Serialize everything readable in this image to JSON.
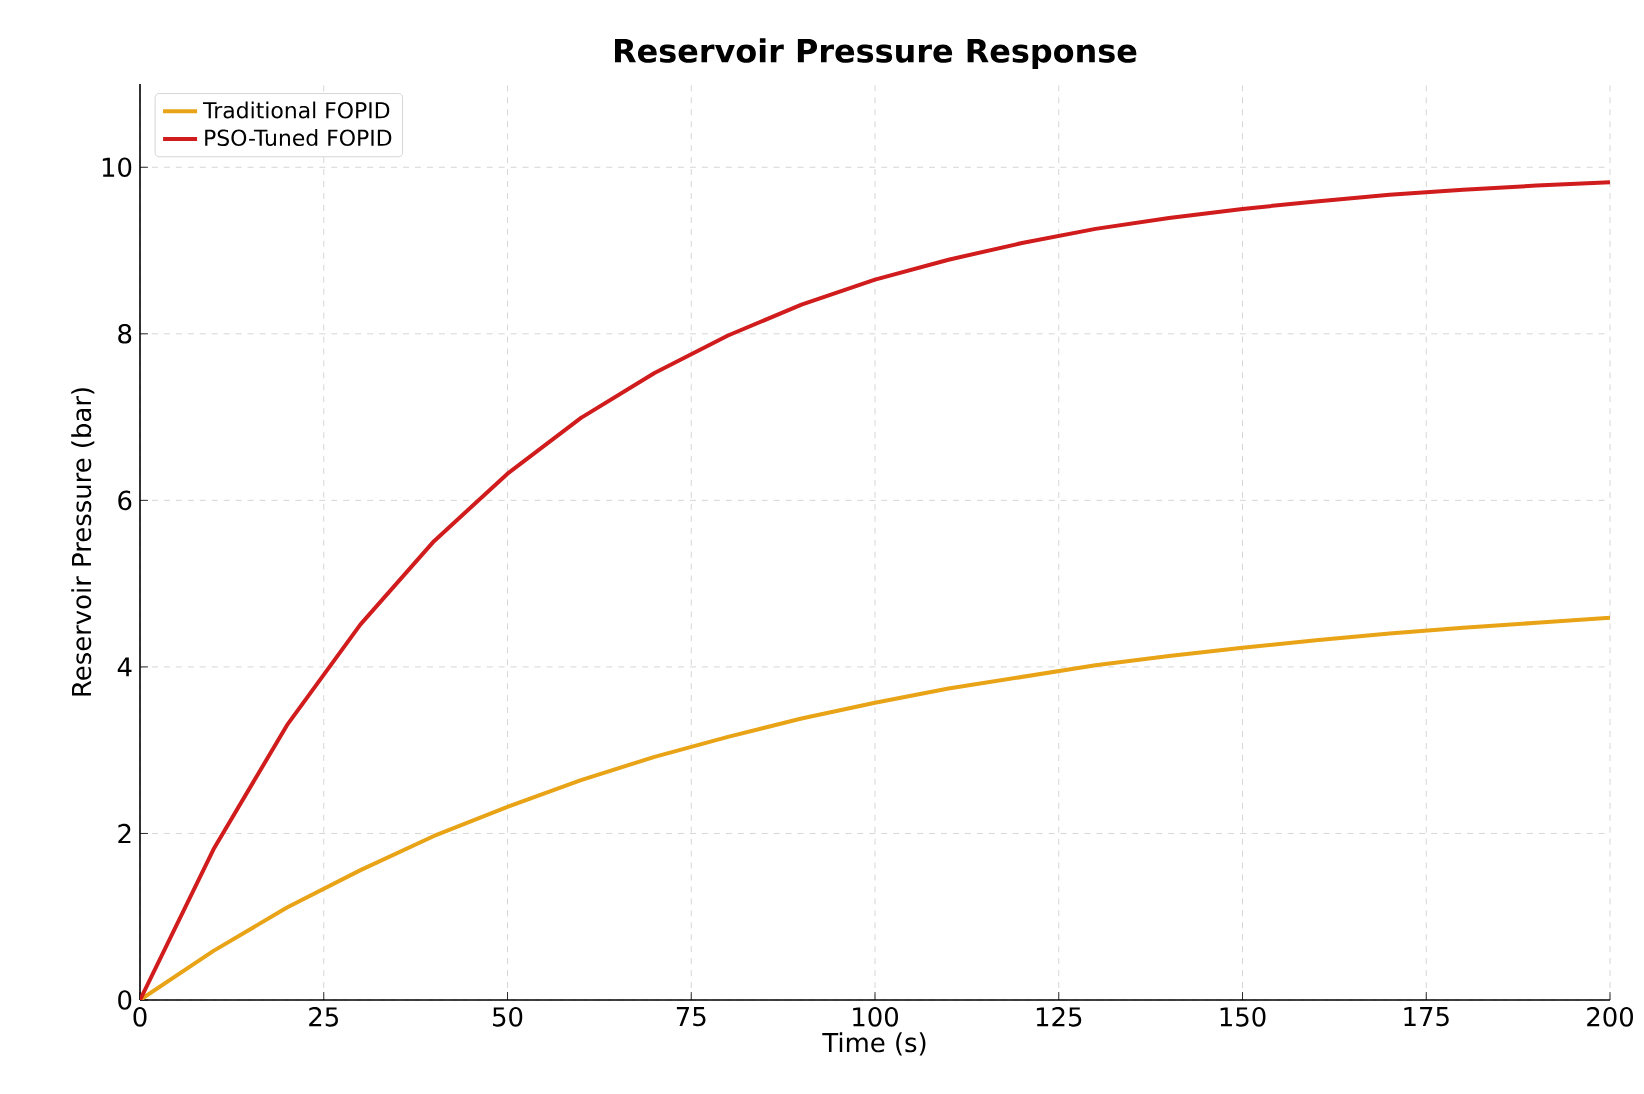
{
  "chart_data": {
    "type": "line",
    "title": "Reservoir Pressure Response",
    "xlabel": "Time (s)",
    "ylabel": "Reservoir Pressure (bar)",
    "x": [
      0,
      10,
      20,
      30,
      40,
      50,
      60,
      70,
      80,
      90,
      100,
      110,
      120,
      130,
      140,
      150,
      160,
      170,
      180,
      190,
      200
    ],
    "series": [
      {
        "name": "Traditional FOPID",
        "color": "#e8a317",
        "values": [
          0,
          0.59,
          1.11,
          1.56,
          1.97,
          2.32,
          2.64,
          2.92,
          3.16,
          3.38,
          3.57,
          3.74,
          3.88,
          4.02,
          4.13,
          4.23,
          4.32,
          4.4,
          4.47,
          4.53,
          4.59
        ]
      },
      {
        "name": "PSO-Tuned FOPID",
        "color": "#d01c1c",
        "values": [
          0,
          1.81,
          3.3,
          4.51,
          5.51,
          6.32,
          6.99,
          7.53,
          7.98,
          8.35,
          8.65,
          8.89,
          9.09,
          9.26,
          9.39,
          9.5,
          9.59,
          9.67,
          9.73,
          9.78,
          9.82
        ]
      }
    ],
    "xlim": [
      0,
      200
    ],
    "xticks": [
      0,
      25,
      50,
      75,
      100,
      125,
      150,
      175,
      200
    ],
    "ylim": [
      0,
      11
    ],
    "yticks": [
      0,
      2,
      4,
      6,
      8,
      10
    ],
    "grid": true,
    "legend": "top left",
    "line_style": "solid",
    "marker": "none"
  }
}
